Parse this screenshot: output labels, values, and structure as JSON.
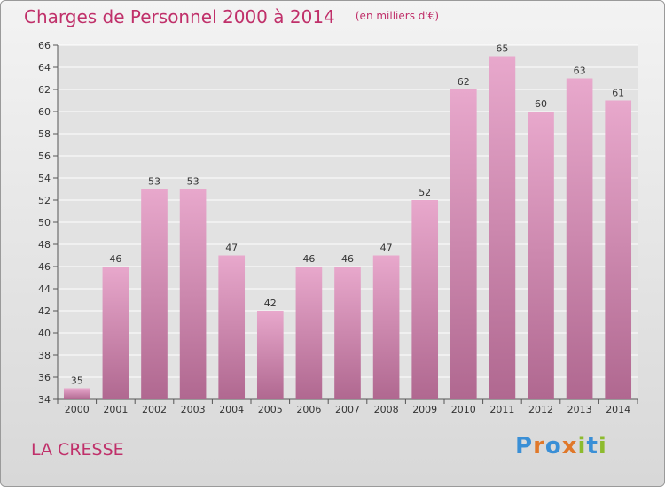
{
  "header": {
    "title": "Charges de Personnel 2000 à 2014",
    "unit": "(en milliers d'€)"
  },
  "footer": {
    "commune": "LA CRESSE",
    "logo": "Proxiti"
  },
  "colors": {
    "title": "#c0306a",
    "bar_top": "#e8a8cc",
    "bar_bottom": "#b06890",
    "grid": "#ffffff"
  },
  "chart_data": {
    "type": "bar",
    "categories": [
      "2000",
      "2001",
      "2002",
      "2003",
      "2004",
      "2005",
      "2006",
      "2007",
      "2008",
      "2009",
      "2010",
      "2011",
      "2012",
      "2013",
      "2014"
    ],
    "values": [
      35,
      46,
      53,
      53,
      47,
      42,
      46,
      46,
      47,
      52,
      62,
      65,
      60,
      63,
      61
    ],
    "ylim": [
      34,
      66
    ],
    "yticks": [
      34,
      36,
      38,
      40,
      42,
      44,
      46,
      48,
      50,
      52,
      54,
      56,
      58,
      60,
      62,
      64,
      66
    ],
    "grid": true,
    "data_labels": true
  }
}
